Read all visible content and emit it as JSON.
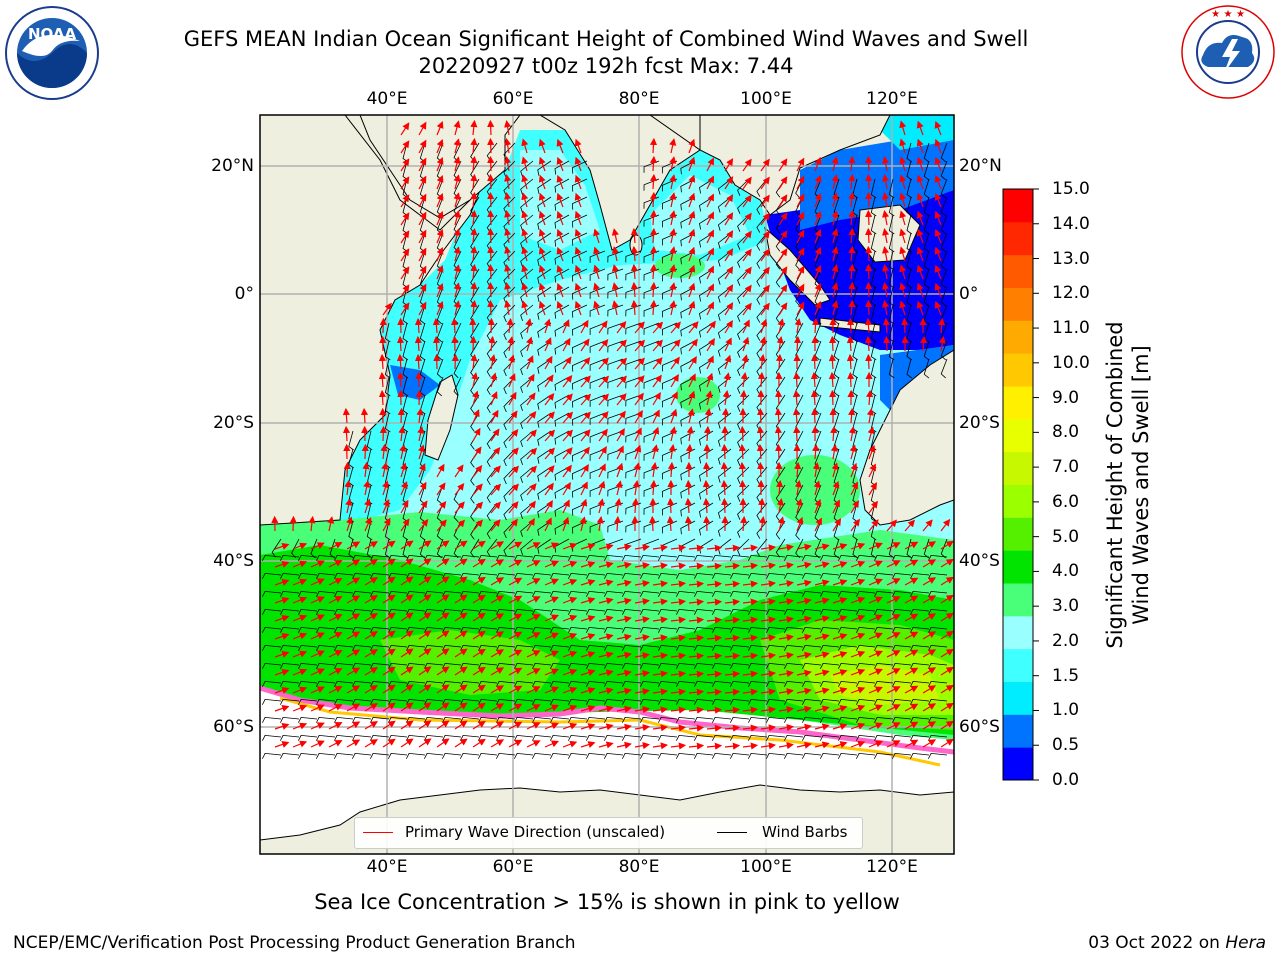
{
  "title": {
    "line1": "GEFS MEAN Indian Ocean Significant Height of Combined Wind Waves and Swell",
    "line2": "20220927 t00z 192h fcst   Max: 7.44"
  },
  "logos": {
    "left": "NOAA",
    "left_ring": "NATIONAL OCEANIC AND ATMOSPHERIC ADMINISTRATION · U.S. DEPARTMENT OF COMMERCE",
    "right_ring": "NATIONAL WEATHER SERVICE"
  },
  "axes": {
    "lon_ticks": [
      "40°E",
      "60°E",
      "80°E",
      "100°E",
      "120°E"
    ],
    "lat_ticks_left": [
      "20°N",
      "0°",
      "20°S",
      "40°S",
      "60°S"
    ],
    "lat_ticks_right": [
      "20°N",
      "0°",
      "20°S",
      "40°S",
      "60°S"
    ],
    "lon_range": [
      20,
      130
    ],
    "lat_range": [
      -75,
      27
    ],
    "grid": true
  },
  "colorbar": {
    "label": "Significant Height of Combined Wind Waves and Swell [m]",
    "label_line1": "Significant Height of Combined",
    "label_line2": "Wind Waves and Swell [m]",
    "ticks": [
      "15.0",
      "14.0",
      "13.0",
      "12.0",
      "11.0",
      "10.0",
      "9.0",
      "8.0",
      "7.0",
      "6.0",
      "5.0",
      "4.0",
      "3.0",
      "2.0",
      "1.5",
      "1.0",
      "0.5",
      "0.0"
    ],
    "colors": [
      "#0000ff",
      "#0073ff",
      "#00ecff",
      "#40ffff",
      "#99ffff",
      "#49ff79",
      "#00e400",
      "#54f000",
      "#9bff00",
      "#c8f800",
      "#e8ff00",
      "#fff000",
      "#ffc800",
      "#ffaa00",
      "#ff8000",
      "#ff5a00",
      "#ff2800",
      "#ff0000"
    ]
  },
  "legend": {
    "items": [
      {
        "label": "Primary Wave Direction (unscaled)",
        "color": "#ff0000"
      },
      {
        "label": "Wind Barbs",
        "color": "#000000"
      }
    ]
  },
  "subtitle": "Sea Ice Concentration > 15% is shown in pink to yellow",
  "footer": {
    "left": "NCEP/EMC/Verification Post Processing Product Generation Branch",
    "right_date": "03 Oct 2022 on ",
    "right_host": "Hera"
  }
}
